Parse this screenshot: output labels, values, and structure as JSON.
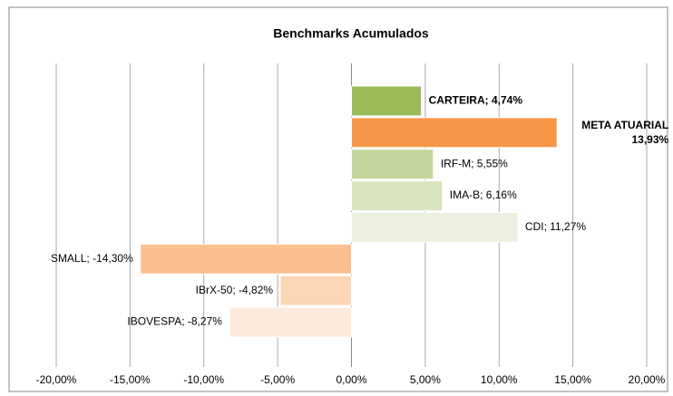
{
  "chart_data": {
    "type": "barh",
    "title": "Benchmarks Acumulados",
    "categories": [
      "CARTEIRA",
      "META ATUARIAL",
      "IRF-M",
      "IMA-B",
      "CDI",
      "SMALL",
      "IBrX-50",
      "IBOVESPA"
    ],
    "values": [
      4.74,
      13.93,
      5.55,
      6.16,
      11.27,
      -14.3,
      -4.82,
      -8.27
    ],
    "value_labels": [
      "CARTEIRA; 4,74%",
      "META ATUARIAL 13,93%",
      "IRF-M; 5,55%",
      "IMA-B; 6,16%",
      "CDI; 11,27%",
      "SMALL; -14,30%",
      "IBrX-50; -4,82%",
      "IBOVESPA; -8,27%"
    ],
    "colors": [
      "#9bbb59",
      "#f79646",
      "#c3d69b",
      "#d7e4bd",
      "#ebf1de",
      "#fac090",
      "#fcd5b5",
      "#fdeada"
    ],
    "xlim": [
      -20,
      20
    ],
    "xticks": [
      {
        "value": -20,
        "label": "-20,00%"
      },
      {
        "value": -15,
        "label": "-15,00%"
      },
      {
        "value": -10,
        "label": "-10,00%"
      },
      {
        "value": -5,
        "label": "-5,00%"
      },
      {
        "value": 0,
        "label": "0,00%"
      },
      {
        "value": 5,
        "label": "5,00%"
      },
      {
        "value": 10,
        "label": "10,00%"
      },
      {
        "value": 15,
        "label": "15,00%"
      },
      {
        "value": 20,
        "label": "20,00%"
      }
    ],
    "grid": true
  }
}
